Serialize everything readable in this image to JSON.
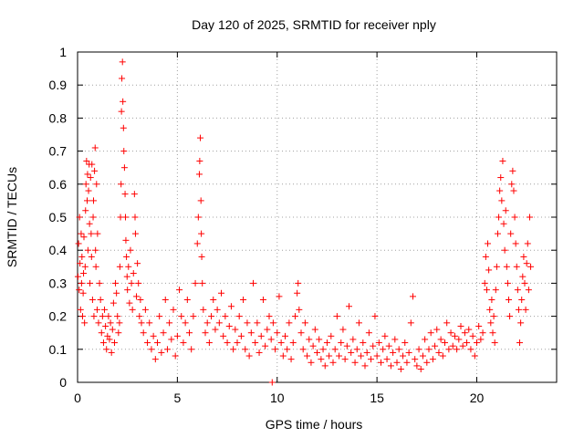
{
  "chart_data": {
    "type": "scatter",
    "title": "Day 120 of 2025, SRMTID for receiver nply",
    "xlabel": "GPS time / hours",
    "ylabel": "SRMTID / TECUs",
    "xlim": [
      0,
      24
    ],
    "ylim": [
      0,
      1
    ],
    "x_ticks": [
      0,
      5,
      10,
      15,
      20
    ],
    "y_ticks": [
      0,
      0.1,
      0.2,
      0.3,
      0.4,
      0.5,
      0.6,
      0.7,
      0.8,
      0.9,
      1
    ],
    "x_tick_labels": [
      "0",
      "5",
      "10",
      "15",
      "20"
    ],
    "y_tick_labels": [
      "0",
      "0.1",
      "0.2",
      "0.3",
      "0.4",
      "0.5",
      "0.6",
      "0.7",
      "0.8",
      "0.9",
      "1"
    ],
    "grid": true,
    "marker": "+",
    "colors": {
      "series": "#ff0000",
      "grid": "#a0a0a0",
      "axes": "#000000"
    },
    "series": [
      {
        "name": "SRMTID",
        "points": [
          [
            0.02,
            0.32
          ],
          [
            0.05,
            0.42
          ],
          [
            0.08,
            0.28
          ],
          [
            0.1,
            0.5
          ],
          [
            0.12,
            0.36
          ],
          [
            0.15,
            0.22
          ],
          [
            0.18,
            0.45
          ],
          [
            0.2,
            0.3
          ],
          [
            0.22,
            0.38
          ],
          [
            0.25,
            0.2
          ],
          [
            0.28,
            0.27
          ],
          [
            0.3,
            0.33
          ],
          [
            0.32,
            0.44
          ],
          [
            0.35,
            0.18
          ],
          [
            0.38,
            0.35
          ],
          [
            0.4,
            0.52
          ],
          [
            0.42,
            0.6
          ],
          [
            0.45,
            0.67
          ],
          [
            0.48,
            0.55
          ],
          [
            0.5,
            0.63
          ],
          [
            0.52,
            0.4
          ],
          [
            0.55,
            0.58
          ],
          [
            0.58,
            0.66
          ],
          [
            0.6,
            0.48
          ],
          [
            0.62,
            0.3
          ],
          [
            0.65,
            0.62
          ],
          [
            0.68,
            0.45
          ],
          [
            0.7,
            0.38
          ],
          [
            0.72,
            0.66
          ],
          [
            0.75,
            0.25
          ],
          [
            0.78,
            0.5
          ],
          [
            0.8,
            0.55
          ],
          [
            0.82,
            0.2
          ],
          [
            0.85,
            0.64
          ],
          [
            0.88,
            0.71
          ],
          [
            0.9,
            0.4
          ],
          [
            0.92,
            0.35
          ],
          [
            0.95,
            0.6
          ],
          [
            0.98,
            0.22
          ],
          [
            1.0,
            0.45
          ],
          [
            1.05,
            0.18
          ],
          [
            1.1,
            0.3
          ],
          [
            1.15,
            0.25
          ],
          [
            1.2,
            0.15
          ],
          [
            1.25,
            0.2
          ],
          [
            1.3,
            0.12
          ],
          [
            1.35,
            0.22
          ],
          [
            1.4,
            0.17
          ],
          [
            1.45,
            0.1
          ],
          [
            1.5,
            0.14
          ],
          [
            1.55,
            0.2
          ],
          [
            1.6,
            0.13
          ],
          [
            1.65,
            0.18
          ],
          [
            1.7,
            0.09
          ],
          [
            1.75,
            0.16
          ],
          [
            1.8,
            0.24
          ],
          [
            1.85,
            0.12
          ],
          [
            1.9,
            0.3
          ],
          [
            1.95,
            0.27
          ],
          [
            2.0,
            0.2
          ],
          [
            2.05,
            0.15
          ],
          [
            2.1,
            0.18
          ],
          [
            2.12,
            0.35
          ],
          [
            2.15,
            0.5
          ],
          [
            2.18,
            0.6
          ],
          [
            2.2,
            0.82
          ],
          [
            2.22,
            0.92
          ],
          [
            2.25,
            0.97
          ],
          [
            2.27,
            0.85
          ],
          [
            2.3,
            0.77
          ],
          [
            2.32,
            0.7
          ],
          [
            2.35,
            0.65
          ],
          [
            2.38,
            0.57
          ],
          [
            2.4,
            0.5
          ],
          [
            2.42,
            0.43
          ],
          [
            2.45,
            0.38
          ],
          [
            2.48,
            0.32
          ],
          [
            2.5,
            0.28
          ],
          [
            2.55,
            0.35
          ],
          [
            2.6,
            0.24
          ],
          [
            2.65,
            0.4
          ],
          [
            2.7,
            0.3
          ],
          [
            2.75,
            0.22
          ],
          [
            2.8,
            0.33
          ],
          [
            2.85,
            0.57
          ],
          [
            2.88,
            0.5
          ],
          [
            2.9,
            0.45
          ],
          [
            2.95,
            0.26
          ],
          [
            3.0,
            0.36
          ],
          [
            3.05,
            0.3
          ],
          [
            3.1,
            0.2
          ],
          [
            3.15,
            0.25
          ],
          [
            3.2,
            0.18
          ],
          [
            3.3,
            0.15
          ],
          [
            3.4,
            0.22
          ],
          [
            3.5,
            0.12
          ],
          [
            3.6,
            0.18
          ],
          [
            3.7,
            0.1
          ],
          [
            3.8,
            0.14
          ],
          [
            3.9,
            0.07
          ],
          [
            4.0,
            0.12
          ],
          [
            4.1,
            0.2
          ],
          [
            4.2,
            0.09
          ],
          [
            4.3,
            0.15
          ],
          [
            4.4,
            0.25
          ],
          [
            4.5,
            0.1
          ],
          [
            4.6,
            0.18
          ],
          [
            4.7,
            0.13
          ],
          [
            4.8,
            0.22
          ],
          [
            4.9,
            0.08
          ],
          [
            5.0,
            0.14
          ],
          [
            5.1,
            0.28
          ],
          [
            5.2,
            0.2
          ],
          [
            5.3,
            0.12
          ],
          [
            5.4,
            0.18
          ],
          [
            5.5,
            0.25
          ],
          [
            5.6,
            0.15
          ],
          [
            5.7,
            0.1
          ],
          [
            5.8,
            0.2
          ],
          [
            5.9,
            0.3
          ],
          [
            6.0,
            0.42
          ],
          [
            6.05,
            0.5
          ],
          [
            6.1,
            0.63
          ],
          [
            6.12,
            0.67
          ],
          [
            6.15,
            0.74
          ],
          [
            6.18,
            0.55
          ],
          [
            6.2,
            0.45
          ],
          [
            6.22,
            0.38
          ],
          [
            6.25,
            0.3
          ],
          [
            6.3,
            0.22
          ],
          [
            6.4,
            0.15
          ],
          [
            6.5,
            0.18
          ],
          [
            6.6,
            0.12
          ],
          [
            6.7,
            0.2
          ],
          [
            6.8,
            0.25
          ],
          [
            6.9,
            0.16
          ],
          [
            7.0,
            0.22
          ],
          [
            7.1,
            0.18
          ],
          [
            7.2,
            0.27
          ],
          [
            7.3,
            0.14
          ],
          [
            7.4,
            0.2
          ],
          [
            7.5,
            0.12
          ],
          [
            7.6,
            0.17
          ],
          [
            7.7,
            0.23
          ],
          [
            7.8,
            0.1
          ],
          [
            7.9,
            0.16
          ],
          [
            8.0,
            0.12
          ],
          [
            8.1,
            0.2
          ],
          [
            8.2,
            0.14
          ],
          [
            8.3,
            0.25
          ],
          [
            8.4,
            0.1
          ],
          [
            8.5,
            0.18
          ],
          [
            8.6,
            0.08
          ],
          [
            8.7,
            0.15
          ],
          [
            8.8,
            0.3
          ],
          [
            8.9,
            0.12
          ],
          [
            9.0,
            0.18
          ],
          [
            9.1,
            0.09
          ],
          [
            9.2,
            0.14
          ],
          [
            9.3,
            0.25
          ],
          [
            9.4,
            0.11
          ],
          [
            9.5,
            0.16
          ],
          [
            9.6,
            0.2
          ],
          [
            9.7,
            0.13
          ],
          [
            9.75,
            0.0
          ],
          [
            9.8,
            0.18
          ],
          [
            9.9,
            0.1
          ],
          [
            10.0,
            0.15
          ],
          [
            10.1,
            0.26
          ],
          [
            10.2,
            0.12
          ],
          [
            10.3,
            0.08
          ],
          [
            10.4,
            0.14
          ],
          [
            10.5,
            0.1
          ],
          [
            10.6,
            0.18
          ],
          [
            10.7,
            0.07
          ],
          [
            10.8,
            0.12
          ],
          [
            10.9,
            0.2
          ],
          [
            11.0,
            0.27
          ],
          [
            11.05,
            0.3
          ],
          [
            11.1,
            0.22
          ],
          [
            11.2,
            0.15
          ],
          [
            11.3,
            0.1
          ],
          [
            11.4,
            0.18
          ],
          [
            11.5,
            0.08
          ],
          [
            11.6,
            0.13
          ],
          [
            11.7,
            0.06
          ],
          [
            11.8,
            0.11
          ],
          [
            11.9,
            0.16
          ],
          [
            12.0,
            0.09
          ],
          [
            12.1,
            0.13
          ],
          [
            12.2,
            0.07
          ],
          [
            12.3,
            0.1
          ],
          [
            12.4,
            0.05
          ],
          [
            12.5,
            0.12
          ],
          [
            12.6,
            0.08
          ],
          [
            12.7,
            0.14
          ],
          [
            12.8,
            0.06
          ],
          [
            12.9,
            0.1
          ],
          [
            13.0,
            0.2
          ],
          [
            13.1,
            0.08
          ],
          [
            13.2,
            0.12
          ],
          [
            13.3,
            0.16
          ],
          [
            13.4,
            0.07
          ],
          [
            13.5,
            0.11
          ],
          [
            13.6,
            0.23
          ],
          [
            13.7,
            0.09
          ],
          [
            13.8,
            0.13
          ],
          [
            13.9,
            0.06
          ],
          [
            14.0,
            0.1
          ],
          [
            14.1,
            0.18
          ],
          [
            14.2,
            0.08
          ],
          [
            14.3,
            0.12
          ],
          [
            14.4,
            0.05
          ],
          [
            14.5,
            0.09
          ],
          [
            14.6,
            0.15
          ],
          [
            14.7,
            0.07
          ],
          [
            14.8,
            0.11
          ],
          [
            14.9,
            0.2
          ],
          [
            15.0,
            0.08
          ],
          [
            15.1,
            0.12
          ],
          [
            15.2,
            0.06
          ],
          [
            15.3,
            0.1
          ],
          [
            15.4,
            0.14
          ],
          [
            15.5,
            0.07
          ],
          [
            15.6,
            0.11
          ],
          [
            15.7,
            0.05
          ],
          [
            15.8,
            0.09
          ],
          [
            15.9,
            0.13
          ],
          [
            16.0,
            0.06
          ],
          [
            16.1,
            0.1
          ],
          [
            16.2,
            0.04
          ],
          [
            16.3,
            0.08
          ],
          [
            16.4,
            0.12
          ],
          [
            16.5,
            0.06
          ],
          [
            16.6,
            0.09
          ],
          [
            16.7,
            0.18
          ],
          [
            16.8,
            0.26
          ],
          [
            16.9,
            0.07
          ],
          [
            17.0,
            0.05
          ],
          [
            17.1,
            0.1
          ],
          [
            17.2,
            0.04
          ],
          [
            17.3,
            0.08
          ],
          [
            17.4,
            0.13
          ],
          [
            17.5,
            0.06
          ],
          [
            17.6,
            0.1
          ],
          [
            17.7,
            0.15
          ],
          [
            17.8,
            0.07
          ],
          [
            17.9,
            0.11
          ],
          [
            18.0,
            0.16
          ],
          [
            18.1,
            0.09
          ],
          [
            18.2,
            0.13
          ],
          [
            18.3,
            0.08
          ],
          [
            18.4,
            0.12
          ],
          [
            18.5,
            0.18
          ],
          [
            18.6,
            0.1
          ],
          [
            18.7,
            0.15
          ],
          [
            18.8,
            0.11
          ],
          [
            18.9,
            0.14
          ],
          [
            19.0,
            0.1
          ],
          [
            19.1,
            0.13
          ],
          [
            19.2,
            0.17
          ],
          [
            19.3,
            0.11
          ],
          [
            19.4,
            0.15
          ],
          [
            19.5,
            0.12
          ],
          [
            19.6,
            0.16
          ],
          [
            19.7,
            0.1
          ],
          [
            19.8,
            0.14
          ],
          [
            19.9,
            0.08
          ],
          [
            20.0,
            0.12
          ],
          [
            20.1,
            0.17
          ],
          [
            20.2,
            0.13
          ],
          [
            20.3,
            0.15
          ],
          [
            20.4,
            0.3
          ],
          [
            20.45,
            0.38
          ],
          [
            20.5,
            0.28
          ],
          [
            20.55,
            0.42
          ],
          [
            20.6,
            0.34
          ],
          [
            20.65,
            0.22
          ],
          [
            20.7,
            0.18
          ],
          [
            20.75,
            0.25
          ],
          [
            20.8,
            0.15
          ],
          [
            20.85,
            0.2
          ],
          [
            20.9,
            0.12
          ],
          [
            20.95,
            0.28
          ],
          [
            21.0,
            0.35
          ],
          [
            21.05,
            0.45
          ],
          [
            21.1,
            0.5
          ],
          [
            21.15,
            0.58
          ],
          [
            21.2,
            0.62
          ],
          [
            21.25,
            0.55
          ],
          [
            21.3,
            0.67
          ],
          [
            21.35,
            0.48
          ],
          [
            21.4,
            0.4
          ],
          [
            21.45,
            0.52
          ],
          [
            21.5,
            0.35
          ],
          [
            21.55,
            0.3
          ],
          [
            21.6,
            0.25
          ],
          [
            21.65,
            0.2
          ],
          [
            21.7,
            0.45
          ],
          [
            21.75,
            0.6
          ],
          [
            21.8,
            0.64
          ],
          [
            21.85,
            0.58
          ],
          [
            21.9,
            0.5
          ],
          [
            21.95,
            0.42
          ],
          [
            22.0,
            0.35
          ],
          [
            22.05,
            0.28
          ],
          [
            22.1,
            0.22
          ],
          [
            22.15,
            0.12
          ],
          [
            22.2,
            0.18
          ],
          [
            22.25,
            0.25
          ],
          [
            22.3,
            0.32
          ],
          [
            22.35,
            0.38
          ],
          [
            22.4,
            0.3
          ],
          [
            22.45,
            0.22
          ],
          [
            22.5,
            0.36
          ],
          [
            22.55,
            0.42
          ],
          [
            22.6,
            0.28
          ],
          [
            22.65,
            0.5
          ],
          [
            22.7,
            0.35
          ]
        ]
      }
    ]
  }
}
